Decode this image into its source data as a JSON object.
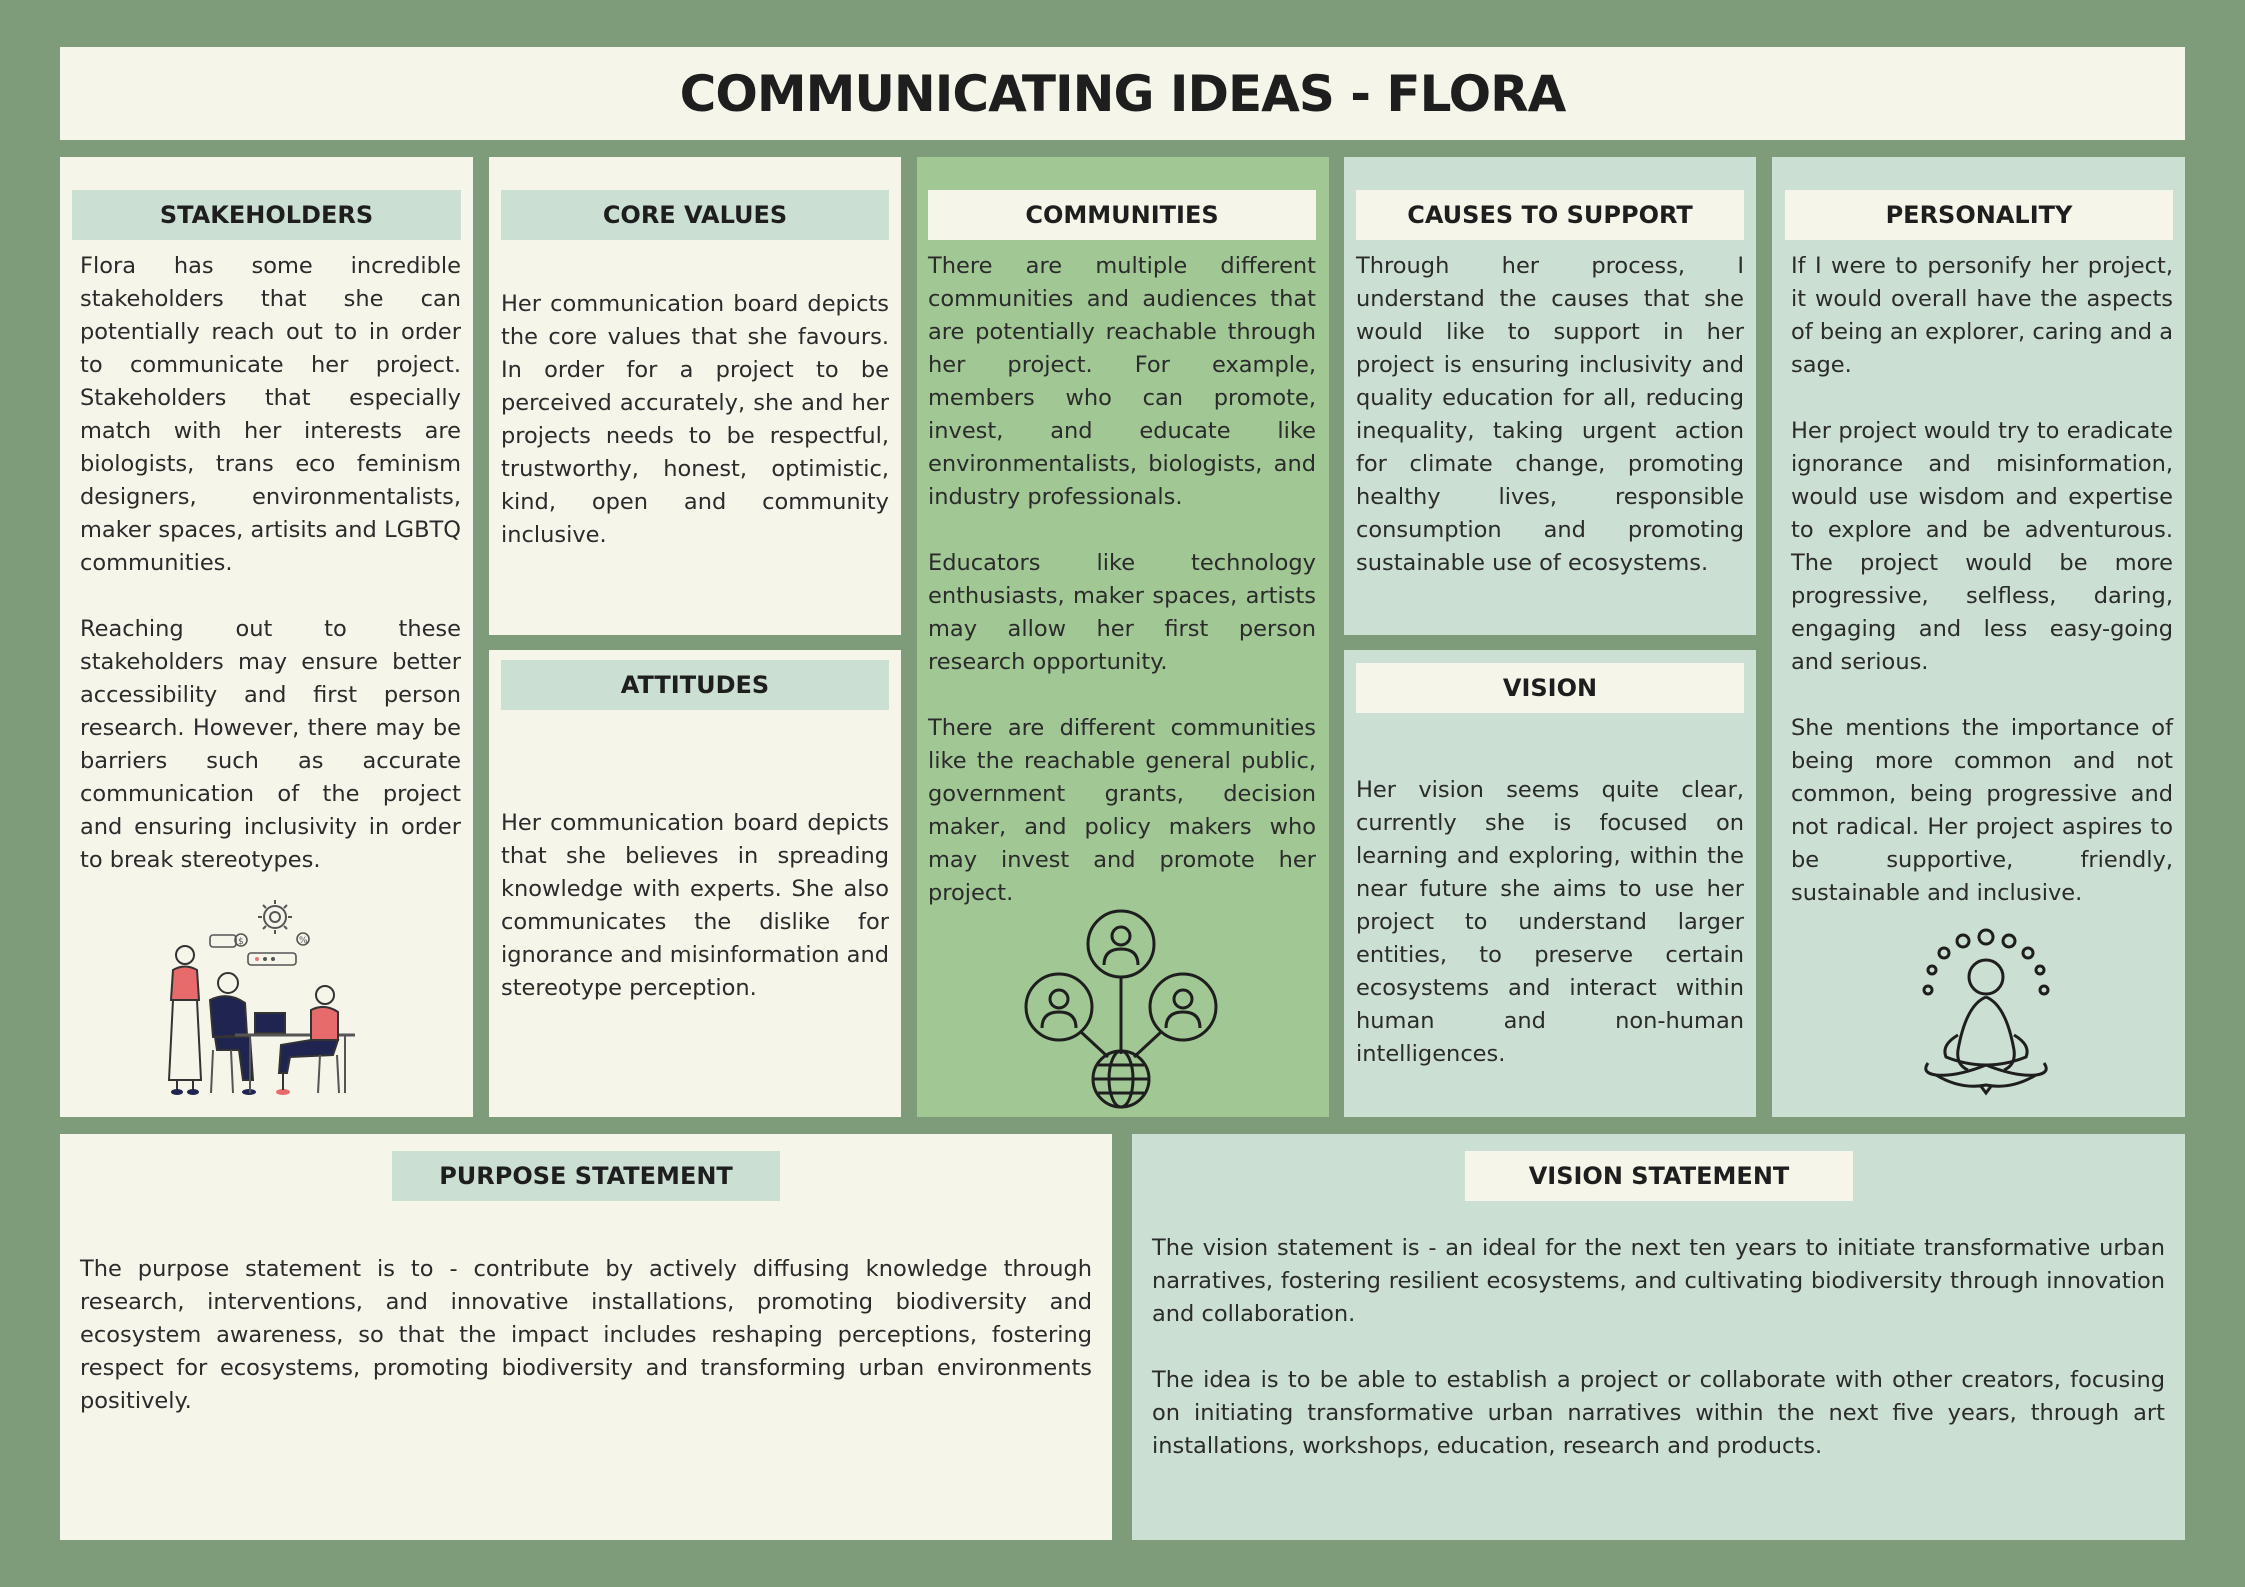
{
  "title": "COMMUNICATING IDEAS - FLORA",
  "stakeholders": {
    "heading": "STAKEHOLDERS",
    "text": "Flora has some incredible stakeholders that she can potentially reach out to in order to communicate her project. Stakeholders that especially match with her interests are biologists, trans eco feminism designers, environmentalists, maker spaces, artisits and LGBTQ communities.\n\nReaching out to these stakeholders may ensure better accessibility and first person research. However, there may be barriers such as accurate communication of the project and ensuring inclusivity in order to break stereotypes.",
    "illustration": "team-meeting-illustration"
  },
  "core_values": {
    "heading": "CORE VALUES",
    "text": "Her communication board depicts the core values that she favours. In order for a project to be perceived accurately, she and her projects needs to be respectful, trustworthy, honest, optimistic, kind, open and community inclusive."
  },
  "attitudes": {
    "heading": "ATTITUDES",
    "text": "Her communication board depicts that she believes in spreading knowledge with experts. She also communicates the dislike for ignorance and misinformation and stereotype perception."
  },
  "communities": {
    "heading": "COMMUNITIES",
    "text": "There are multiple different communities and audiences that are potentially reachable through her project. For example, members who can promote, invest, and educate like environmentalists, biologists, and industry professionals.\n\nEducators like technology enthusiasts, maker spaces, artists may allow her first person research opportunity.\n\nThere are different communities like the reachable general public, government grants, decision maker, and policy makers who may invest and promote her project.",
    "icon": "global-network-icon"
  },
  "causes": {
    "heading": "CAUSES TO SUPPORT",
    "text": "Through her process, I understand the causes that she would like to support in her project is ensuring inclusivity and quality education for all, reducing inequality, taking urgent action for climate change, promoting healthy lives, responsible consumption and promoting sustainable use of ecosystems."
  },
  "vision": {
    "heading": "VISION",
    "text": "Her vision seems quite clear, currently she is focused on learning and exploring, within the near future she aims to use her project to understand larger entities, to preserve certain ecosystems and interact within human and non-human intelligences."
  },
  "personality": {
    "heading": "PERSONALITY",
    "text": "If I were to personify her project, it would overall have the aspects of being an explorer, caring and a sage.\n\nHer project would try to eradicate ignorance and misinformation, would use wisdom and expertise to explore and be adventurous. The project would be more progressive, selfless, daring, engaging and less easy-going and serious.\n\nShe mentions the importance of being more common and not common, being progressive and not radical. Her project aspires to be supportive, friendly, sustainable and inclusive.",
    "icon": "meditation-icon"
  },
  "purpose_statement": {
    "heading": "PURPOSE STATEMENT",
    "text": "The purpose statement is to - contribute by actively diffusing knowledge through research, interventions, and innovative installations, promoting biodiversity and ecosystem awareness, so that the impact includes reshaping perceptions, fostering respect for ecosystems, promoting biodiversity and transforming urban environments positively."
  },
  "vision_statement": {
    "heading": "VISION STATEMENT",
    "text": "The vision statement is - an ideal for the next ten years to initiate transformative urban narratives, fostering resilient ecosystems, and cultivating biodiversity through innovation and collaboration.\n\nThe idea is to be able to establish a project or collaborate with other creators, focusing on initiating transformative urban narratives within the next five years, through art installations, workshops, education, research and products."
  },
  "colors": {
    "background": "#7e9c7a",
    "cream": "#f6f5ea",
    "mint": "#ccdfd3",
    "green": "#a1c795"
  }
}
